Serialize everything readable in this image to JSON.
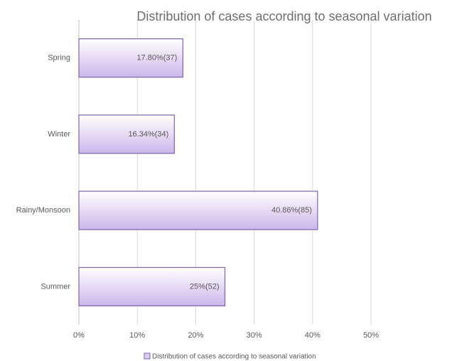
{
  "chart_data": {
    "type": "bar",
    "orientation": "horizontal",
    "title": "Distribution of cases according to seasonal variation",
    "categories": [
      "Spring",
      "Winter",
      "Rainy/Monsoon",
      "Summer"
    ],
    "series": [
      {
        "name": "Distribution of cases according to seasonal variation",
        "color": "#dccdf0",
        "values": [
          17.8,
          16.34,
          40.86,
          25
        ],
        "value_labels": [
          "17.80%(37)",
          "16.34%(34)",
          "40.86%(85)",
          "25%(52)"
        ]
      }
    ],
    "xlim": [
      0,
      50
    ],
    "xticks": [
      {
        "value": 0,
        "label": "0%"
      },
      {
        "value": 10,
        "label": "10%"
      },
      {
        "value": 20,
        "label": "20%"
      },
      {
        "value": 30,
        "label": "30%"
      },
      {
        "value": 40,
        "label": "40%"
      },
      {
        "value": 50,
        "label": "50%"
      }
    ],
    "grid": true,
    "legend": "bottom"
  }
}
